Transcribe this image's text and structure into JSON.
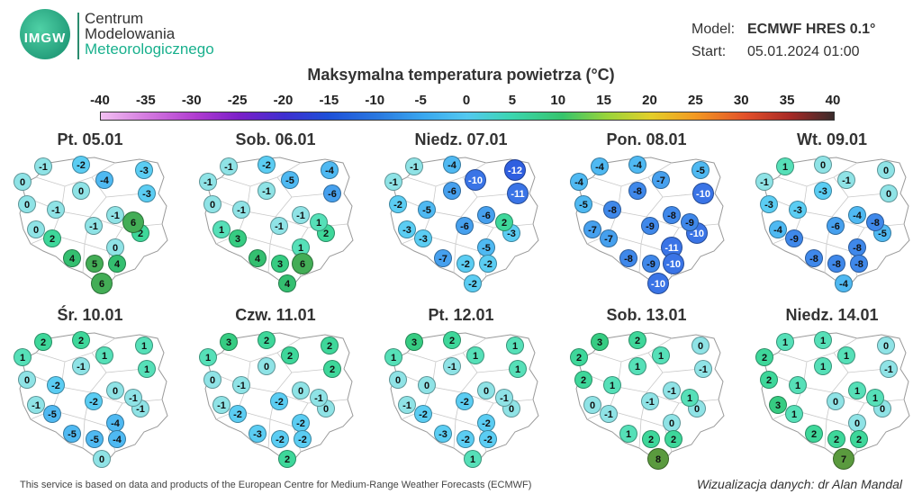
{
  "header": {
    "logo_text": "IMGW",
    "org_line1": "Centrum",
    "org_line2": "Modelowania",
    "org_line3": "Meteorologicznego",
    "model_label": "Model:",
    "model_value": "ECMWF HRES 0.1°",
    "start_label": "Start:",
    "start_value": "05.01.2024 01:00"
  },
  "title": "Maksymalna temperatura powietrza (°C)",
  "colorbar": {
    "ticks": [
      "-40",
      "-35",
      "-30",
      "-25",
      "-20",
      "-15",
      "-10",
      "-5",
      "0",
      "5",
      "10",
      "15",
      "20",
      "25",
      "30",
      "35",
      "40"
    ],
    "min": -40,
    "max": 40
  },
  "panels": [
    {
      "date": "Pt. 05.01",
      "values": [
        -1,
        -2,
        -3,
        0,
        -4,
        -3,
        0,
        0,
        -1,
        -1,
        0,
        -1,
        0,
        2,
        2,
        4,
        5,
        4,
        6,
        6
      ]
    },
    {
      "date": "Sob. 06.01",
      "values": [
        -1,
        -2,
        -4,
        -1,
        -5,
        -6,
        0,
        -1,
        -1,
        -1,
        1,
        -1,
        1,
        2,
        3,
        4,
        3,
        6,
        4,
        1
      ]
    },
    {
      "date": "Niedz. 07.01",
      "values": [
        -1,
        -4,
        -12,
        -1,
        -10,
        -11,
        -2,
        -6,
        -5,
        -6,
        -3,
        -6,
        -5,
        -3,
        -3,
        -7,
        -2,
        -2,
        -2,
        2
      ]
    },
    {
      "date": "Pon. 08.01",
      "values": [
        -4,
        -4,
        -5,
        -4,
        -7,
        -10,
        -5,
        -8,
        -8,
        -8,
        -7,
        -9,
        -11,
        -10,
        -7,
        -8,
        -9,
        -10,
        -10,
        -9
      ]
    },
    {
      "date": "Wt. 09.01",
      "values": [
        1,
        0,
        0,
        -1,
        -1,
        0,
        -3,
        -3,
        -3,
        -4,
        -4,
        -6,
        -8,
        -5,
        -9,
        -8,
        -8,
        -8,
        -4,
        -8
      ]
    },
    {
      "date": "Śr. 10.01",
      "values": [
        2,
        2,
        1,
        1,
        1,
        1,
        0,
        -1,
        -2,
        0,
        -1,
        -2,
        -4,
        -1,
        -5,
        -5,
        -5,
        -4,
        0,
        -1
      ]
    },
    {
      "date": "Czw. 11.01",
      "values": [
        3,
        2,
        2,
        1,
        2,
        2,
        0,
        0,
        -1,
        0,
        -1,
        -2,
        -2,
        0,
        -2,
        -3,
        -2,
        -2,
        2,
        -1
      ]
    },
    {
      "date": "Pt. 12.01",
      "values": [
        3,
        2,
        1,
        1,
        1,
        1,
        0,
        -1,
        0,
        0,
        -1,
        -2,
        -2,
        0,
        -2,
        -3,
        -2,
        -2,
        1,
        -1
      ]
    },
    {
      "date": "Sob. 13.01",
      "values": [
        3,
        2,
        0,
        2,
        1,
        -1,
        2,
        1,
        1,
        -1,
        0,
        -1,
        0,
        0,
        -1,
        1,
        2,
        2,
        8,
        1
      ]
    },
    {
      "date": "Niedz. 14.01",
      "values": [
        1,
        1,
        0,
        2,
        1,
        -1,
        2,
        1,
        1,
        1,
        3,
        0,
        0,
        0,
        1,
        2,
        2,
        2,
        7,
        1
      ]
    }
  ],
  "footer": "This service is based on data and products of the European Centre for Medium-Range Weather Forecasts (ECMWF)",
  "credit": "Wizualizacja danych: dr Alan Mandal"
}
